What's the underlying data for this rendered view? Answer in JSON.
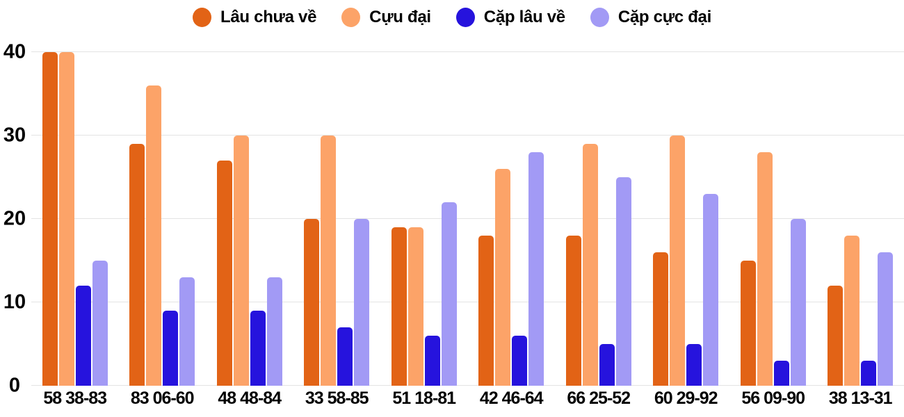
{
  "legend": {
    "items": [
      {
        "label": "Lâu chưa về",
        "color": "#e26316"
      },
      {
        "label": "Cựu đại",
        "color": "#fca368"
      },
      {
        "label": "Cặp lâu về",
        "color": "#2613dd"
      },
      {
        "label": "Cặp cực đại",
        "color": "#a29af5"
      }
    ]
  },
  "chart_data": {
    "type": "bar",
    "categories": [
      "58 38-83",
      "83 06-60",
      "48 48-84",
      "33 58-85",
      "51 18-81",
      "42 46-64",
      "66 25-52",
      "60 29-92",
      "56 09-90",
      "38 13-31"
    ],
    "series": [
      {
        "name": "Lâu chưa về",
        "color": "#e26316",
        "values": [
          40,
          29,
          27,
          20,
          19,
          18,
          18,
          16,
          15,
          12
        ]
      },
      {
        "name": "Cựu đại",
        "color": "#fca368",
        "values": [
          40,
          36,
          30,
          30,
          19,
          26,
          29,
          30,
          28,
          18
        ]
      },
      {
        "name": "Cặp lâu về",
        "color": "#2613dd",
        "values": [
          12,
          9,
          9,
          7,
          6,
          6,
          5,
          5,
          3,
          3
        ]
      },
      {
        "name": "Cặp cực đại",
        "color": "#a29af5",
        "values": [
          15,
          13,
          13,
          20,
          22,
          28,
          25,
          23,
          20,
          16
        ]
      }
    ],
    "title": "",
    "xlabel": "",
    "ylabel": "",
    "ylim": [
      0,
      40
    ],
    "yticks": [
      0,
      10,
      20,
      30,
      40
    ],
    "grid": true,
    "legend_position": "top",
    "grid_color": "#e3e3e3",
    "text_color": "#000000"
  }
}
